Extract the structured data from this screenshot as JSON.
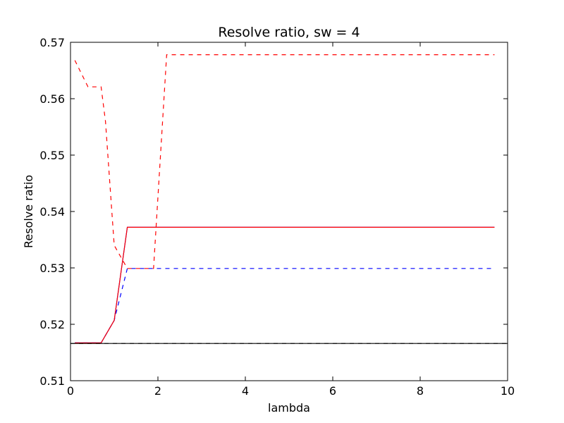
{
  "chart_data": {
    "type": "line",
    "title": "Resolve ratio, sw = 4",
    "xlabel": "lambda",
    "ylabel": "Resolve ratio",
    "xlim": [
      0,
      10
    ],
    "ylim": [
      0.51,
      0.57
    ],
    "xticks": [
      0,
      2,
      4,
      6,
      8,
      10
    ],
    "yticks": [
      0.51,
      0.52,
      0.53,
      0.54,
      0.55,
      0.56,
      0.57
    ],
    "xtick_labels": [
      "0",
      "2",
      "4",
      "6",
      "8",
      "10"
    ],
    "ytick_labels": [
      "0.51",
      "0.52",
      "0.53",
      "0.54",
      "0.55",
      "0.56",
      "0.57"
    ],
    "grid": false,
    "series": [
      {
        "color": "#0000ff",
        "style": "dashed",
        "x": [
          0.1,
          0.4,
          0.7,
          1.0,
          1.3,
          1.6,
          1.9,
          2.2,
          9.7
        ],
        "y": [
          0.5167,
          0.5167,
          0.5167,
          0.5207,
          0.5299,
          0.5299,
          0.5299,
          0.5299,
          0.5299
        ]
      },
      {
        "color": "#ff0000",
        "style": "dashed",
        "x": [
          0.1,
          0.4,
          0.7,
          0.8,
          1.0,
          1.3,
          1.6,
          1.9,
          2.2,
          9.7
        ],
        "y": [
          0.5668,
          0.5621,
          0.5621,
          0.556,
          0.534,
          0.5299,
          0.5299,
          0.5299,
          0.5678,
          0.5678
        ]
      },
      {
        "color": "#0000ff",
        "style": "solid",
        "x": [
          0.1,
          0.4,
          0.7,
          1.0,
          1.3,
          1.6,
          9.7
        ],
        "y": [
          0.5167,
          0.5167,
          0.5167,
          0.5207,
          0.5372,
          0.5372,
          0.5372
        ]
      },
      {
        "color": "#ff0000",
        "style": "solid",
        "x": [
          0.1,
          0.4,
          0.7,
          1.0,
          1.3,
          1.6,
          9.7
        ],
        "y": [
          0.5167,
          0.5167,
          0.5167,
          0.5207,
          0.5372,
          0.5372,
          0.5372
        ]
      },
      {
        "color": "#000000",
        "style": "solid",
        "x": [
          0.0,
          10.0
        ],
        "y": [
          0.5166,
          0.5166
        ]
      },
      {
        "color": "#000000",
        "style": "dashed",
        "x": [
          0.0,
          10.0
        ],
        "y": [
          0.5166,
          0.5166
        ]
      }
    ]
  }
}
